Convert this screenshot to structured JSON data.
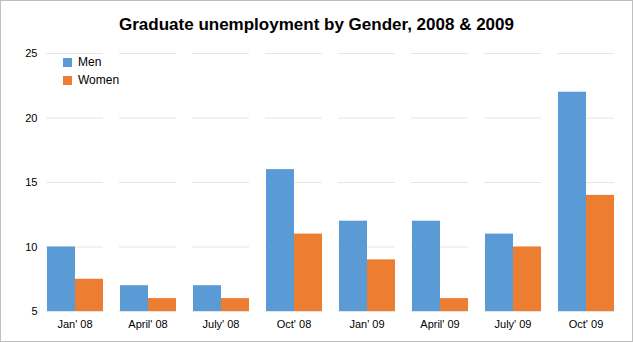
{
  "chart_data": {
    "type": "bar",
    "title": "Graduate unemployment by Gender, 2008 & 2009",
    "categories": [
      "Jan' 08",
      "April' 08",
      "July' 08",
      "Oct' 08",
      "Jan' 09",
      "April' 09",
      "July' 09",
      "Oct' 09"
    ],
    "series": [
      {
        "name": "Men",
        "color": "#5b9bd5",
        "values": [
          10,
          7,
          7,
          16,
          12,
          12,
          11,
          22
        ]
      },
      {
        "name": "Women",
        "color": "#ed7d31",
        "values": [
          7.5,
          6,
          6,
          11,
          9,
          6,
          10,
          14
        ]
      }
    ],
    "ylim": [
      5,
      25
    ],
    "yticks": [
      5,
      10,
      15,
      20,
      25
    ],
    "grid": true,
    "legend": "top-left"
  }
}
